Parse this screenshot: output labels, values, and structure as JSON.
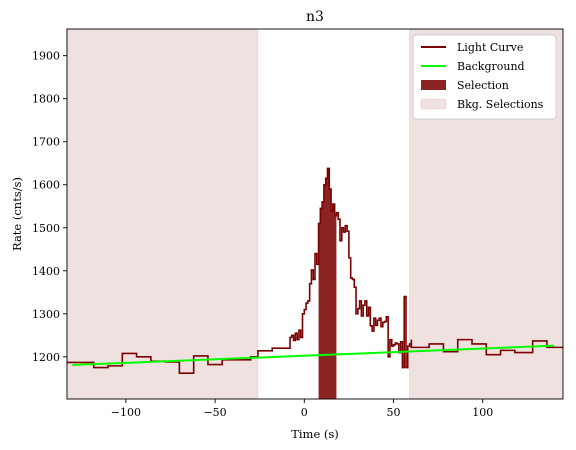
{
  "chart_data": {
    "type": "line",
    "title": "n3",
    "xlabel": "Time (s)",
    "ylabel": "Rate (cnts/s)",
    "xlim": [
      -133,
      145
    ],
    "ylim": [
      1102,
      1962
    ],
    "xticks": [
      -100,
      -50,
      0,
      50,
      100
    ],
    "xtick_labels": [
      "−100",
      "−50",
      "0",
      "50",
      "100"
    ],
    "yticks": [
      1200,
      1300,
      1400,
      1500,
      1600,
      1700,
      1800,
      1900
    ],
    "ytick_labels": [
      "1200",
      "1300",
      "1400",
      "1500",
      "1600",
      "1700",
      "1800",
      "1900"
    ],
    "grid": false,
    "legend_position": "top-right",
    "legend": {
      "light_curve": "Light Curve",
      "background": "Background",
      "selection": "Selection",
      "bkg_selections": "Bkg. Selections"
    },
    "colors": {
      "light_curve": "#7a0000",
      "background": "#00ff00",
      "selection": "#8b2323",
      "bkg_selections": "#f0e1e1"
    },
    "bkg_selections": [
      [
        -133,
        -26
      ],
      [
        59,
        145
      ]
    ],
    "selection": [
      8,
      18
    ],
    "background_line": {
      "x": [
        -130,
        140
      ],
      "y": [
        1181,
        1226
      ]
    },
    "light_curve": [
      [
        -133,
        1187
      ],
      [
        -126,
        1187
      ],
      [
        -118,
        1175
      ],
      [
        -110,
        1179
      ],
      [
        -102,
        1208
      ],
      [
        -94,
        1200
      ],
      [
        -86,
        1190
      ],
      [
        -78,
        1188
      ],
      [
        -70,
        1162
      ],
      [
        -62,
        1202
      ],
      [
        -54,
        1182
      ],
      [
        -46,
        1193
      ],
      [
        -38,
        1193
      ],
      [
        -30,
        1200
      ],
      [
        -26,
        1214
      ],
      [
        -18,
        1220
      ],
      [
        -8,
        1220
      ],
      [
        -8,
        1245
      ],
      [
        -7,
        1250
      ],
      [
        -6,
        1238
      ],
      [
        -5,
        1255
      ],
      [
        -4,
        1240
      ],
      [
        -3,
        1262
      ],
      [
        -2,
        1245
      ],
      [
        -1,
        1300
      ],
      [
        0,
        1310
      ],
      [
        1,
        1325
      ],
      [
        2,
        1330
      ],
      [
        3,
        1370
      ],
      [
        4,
        1402
      ],
      [
        5,
        1380
      ],
      [
        6,
        1440
      ],
      [
        7,
        1415
      ],
      [
        8,
        1510
      ],
      [
        9,
        1545
      ],
      [
        10,
        1560
      ],
      [
        11,
        1600
      ],
      [
        12,
        1615
      ],
      [
        13,
        1638
      ],
      [
        14,
        1590
      ],
      [
        15,
        1540
      ],
      [
        16,
        1555
      ],
      [
        17,
        1528
      ],
      [
        18,
        1535
      ],
      [
        19,
        1520
      ],
      [
        20,
        1470
      ],
      [
        21,
        1500
      ],
      [
        22,
        1490
      ],
      [
        23,
        1505
      ],
      [
        24,
        1492
      ],
      [
        25,
        1430
      ],
      [
        26,
        1383
      ],
      [
        27,
        1380
      ],
      [
        28,
        1362
      ],
      [
        29,
        1300
      ],
      [
        30,
        1312
      ],
      [
        31,
        1330
      ],
      [
        32,
        1295
      ],
      [
        33,
        1320
      ],
      [
        34,
        1330
      ],
      [
        35,
        1295
      ],
      [
        36,
        1315
      ],
      [
        37,
        1272
      ],
      [
        38,
        1260
      ],
      [
        39,
        1290
      ],
      [
        40,
        1273
      ],
      [
        41,
        1285
      ],
      [
        42,
        1290
      ],
      [
        43,
        1270
      ],
      [
        44,
        1280
      ],
      [
        45,
        1282
      ],
      [
        46,
        1293
      ],
      [
        47,
        1200
      ],
      [
        48,
        1240
      ],
      [
        49,
        1225
      ],
      [
        50,
        1228
      ],
      [
        51,
        1232
      ],
      [
        52,
        1230
      ],
      [
        53,
        1210
      ],
      [
        54,
        1235
      ],
      [
        55,
        1175
      ],
      [
        56,
        1340
      ],
      [
        57,
        1175
      ],
      [
        58,
        1225
      ],
      [
        59,
        1230
      ],
      [
        60,
        1240
      ],
      [
        60,
        1222
      ],
      [
        70,
        1230
      ],
      [
        78,
        1212
      ],
      [
        86,
        1240
      ],
      [
        94,
        1230
      ],
      [
        102,
        1205
      ],
      [
        110,
        1215
      ],
      [
        118,
        1210
      ],
      [
        128,
        1237
      ],
      [
        136,
        1222
      ],
      [
        145,
        1222
      ]
    ]
  }
}
